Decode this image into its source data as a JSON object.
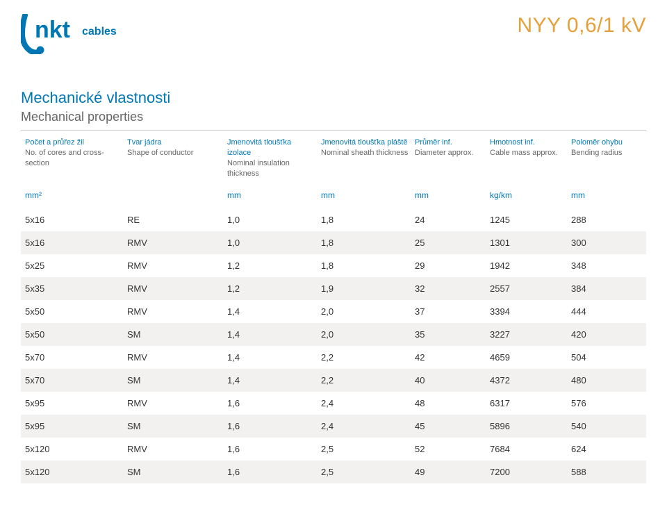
{
  "brand": {
    "name": "nkt",
    "suffix": "cables"
  },
  "product_title": "NYY 0,6/1 kV",
  "section": {
    "cs": "Mechanické vlastnosti",
    "en": "Mechanical properties"
  },
  "colors": {
    "brand_blue": "#0077b3",
    "accent_orange": "#e5a13d",
    "text_grey": "#666666",
    "row_alt": "#f2f1ef",
    "border": "#cccccc"
  },
  "table": {
    "columns": [
      {
        "cs": "Počet a průřez žil",
        "en": "No. of cores and cross-section",
        "unit": "mm²"
      },
      {
        "cs": "Tvar jádra",
        "en": "Shape of conductor",
        "unit": ""
      },
      {
        "cs": "Jmenovitá tloušťka izolace",
        "en": "Nominal insulation thickness",
        "unit": "mm"
      },
      {
        "cs": "Jmenovitá tloušťka pláště",
        "en": "Nominal sheath thickness",
        "unit": "mm"
      },
      {
        "cs": "Průměr inf.",
        "en": "Diameter approx.",
        "unit": "mm"
      },
      {
        "cs": "Hmotnost inf.",
        "en": "Cable mass approx.",
        "unit": "kg/km"
      },
      {
        "cs": "Poloměr ohybu",
        "en": "Bending radius",
        "unit": "mm"
      }
    ],
    "rows": [
      [
        "5x16",
        "RE",
        "1,0",
        "1,8",
        "24",
        "1245",
        "288"
      ],
      [
        "5x16",
        "RMV",
        "1,0",
        "1,8",
        "25",
        "1301",
        "300"
      ],
      [
        "5x25",
        "RMV",
        "1,2",
        "1,8",
        "29",
        "1942",
        "348"
      ],
      [
        "5x35",
        "RMV",
        "1,2",
        "1,9",
        "32",
        "2557",
        "384"
      ],
      [
        "5x50",
        "RMV",
        "1,4",
        "2,0",
        "37",
        "3394",
        "444"
      ],
      [
        "5x50",
        "SM",
        "1,4",
        "2,0",
        "35",
        "3227",
        "420"
      ],
      [
        "5x70",
        "RMV",
        "1,4",
        "2,2",
        "42",
        "4659",
        "504"
      ],
      [
        "5x70",
        "SM",
        "1,4",
        "2,2",
        "40",
        "4372",
        "480"
      ],
      [
        "5x95",
        "RMV",
        "1,6",
        "2,4",
        "48",
        "6317",
        "576"
      ],
      [
        "5x95",
        "SM",
        "1,6",
        "2,4",
        "45",
        "5896",
        "540"
      ],
      [
        "5x120",
        "RMV",
        "1,6",
        "2,5",
        "52",
        "7684",
        "624"
      ],
      [
        "5x120",
        "SM",
        "1,6",
        "2,5",
        "49",
        "7200",
        "588"
      ]
    ]
  }
}
